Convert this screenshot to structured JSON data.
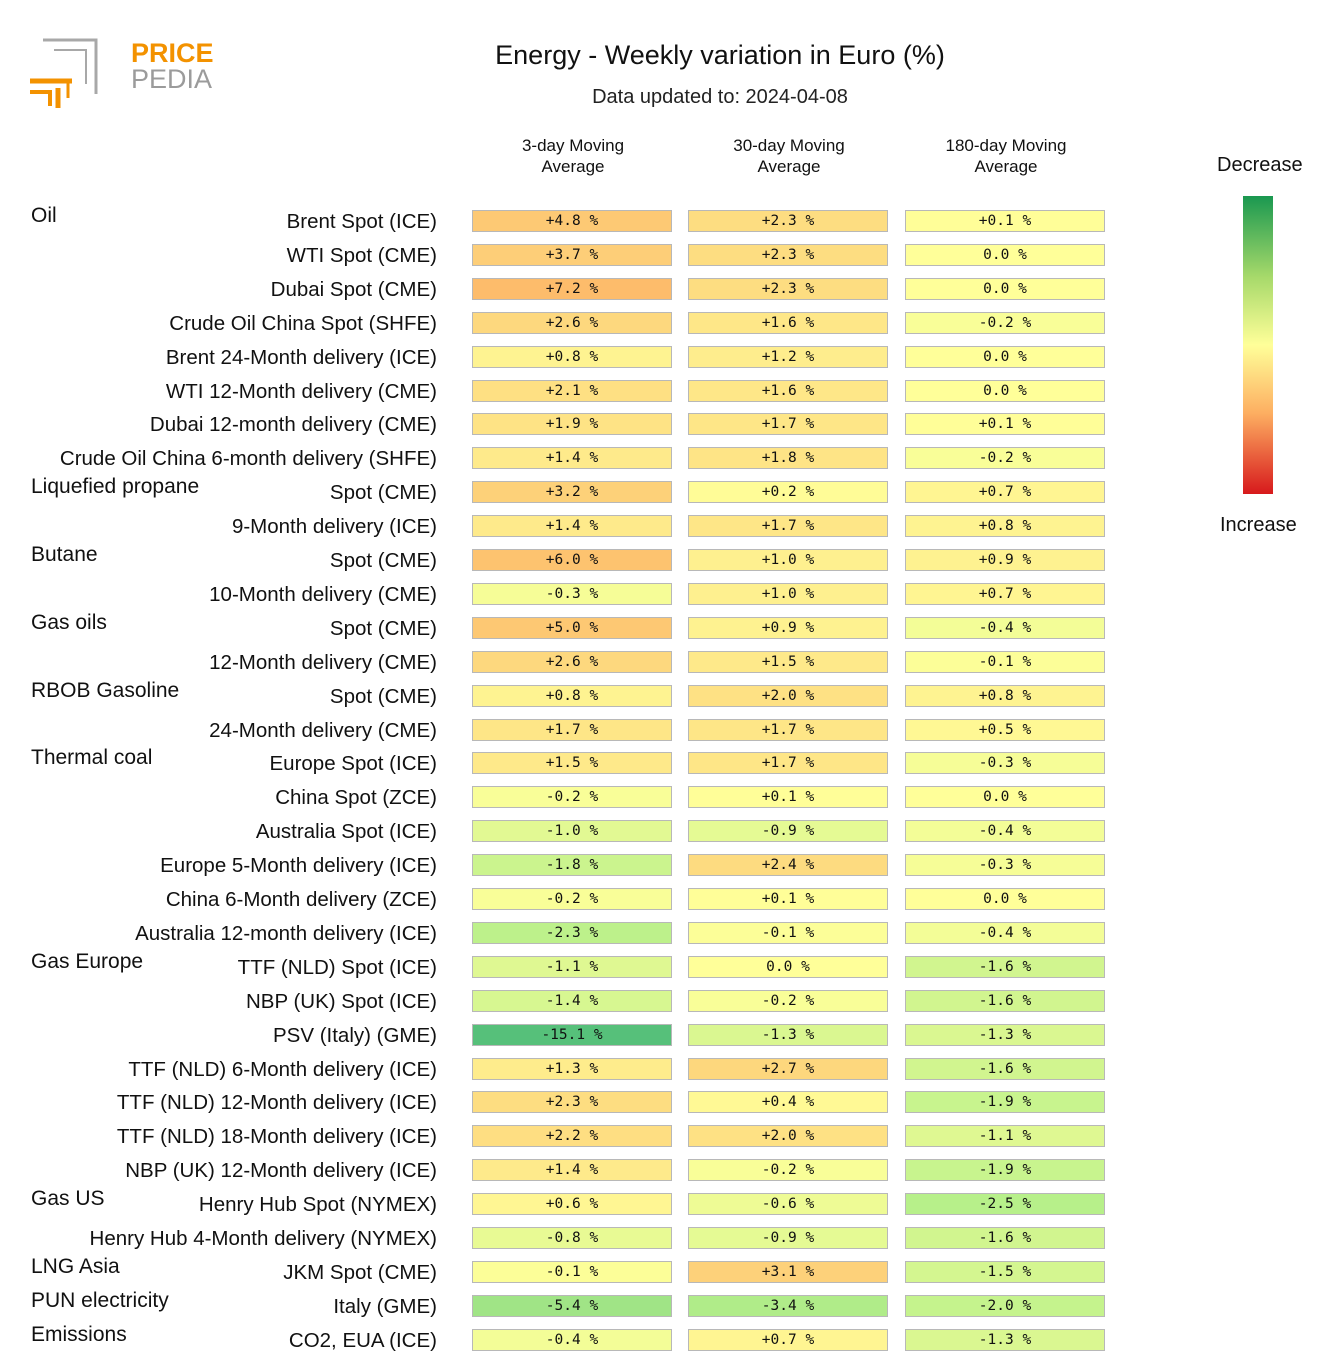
{
  "logo": {
    "line1": "PRICE",
    "line2": "PEDIA",
    "brand_color": "#f39200",
    "gray_color": "#9b9b9b"
  },
  "title": "Energy - Weekly variation in Euro (%)",
  "subtitle": "Data updated to: 2024-04-08",
  "columns": [
    {
      "line1": "3-day Moving",
      "line2": "Average"
    },
    {
      "line1": "30-day Moving",
      "line2": "Average"
    },
    {
      "line1": "180-day Moving",
      "line2": "Average"
    }
  ],
  "legend": {
    "top_label": "Decrease",
    "bottom_label": "Increase",
    "colors": [
      "#1a9850",
      "#a6d96a",
      "#ffff99",
      "#fdae61",
      "#d7191c"
    ]
  },
  "chart_data": {
    "type": "table",
    "title": "Energy - Weekly variation in Euro (%)",
    "unit": "%",
    "columns": [
      "3-day Moving Average",
      "30-day Moving Average",
      "180-day Moving Average"
    ],
    "rows": [
      {
        "group": "Oil",
        "label": "Brent Spot (ICE)",
        "values": [
          "+4.8 %",
          "+2.3 %",
          "+0.1 %"
        ]
      },
      {
        "group": "",
        "label": "WTI Spot (CME)",
        "values": [
          "+3.7 %",
          "+2.3 %",
          "0.0 %"
        ]
      },
      {
        "group": "",
        "label": "Dubai Spot (CME)",
        "values": [
          "+7.2 %",
          "+2.3 %",
          "0.0 %"
        ]
      },
      {
        "group": "",
        "label": "Crude Oil China Spot (SHFE)",
        "values": [
          "+2.6 %",
          "+1.6 %",
          "-0.2 %"
        ]
      },
      {
        "group": "",
        "label": "Brent 24-Month delivery (ICE)",
        "values": [
          "+0.8 %",
          "+1.2 %",
          "0.0 %"
        ]
      },
      {
        "group": "",
        "label": "WTI 12-Month delivery (CME)",
        "values": [
          "+2.1 %",
          "+1.6 %",
          "0.0 %"
        ]
      },
      {
        "group": "",
        "label": "Dubai 12-month delivery (CME)",
        "values": [
          "+1.9 %",
          "+1.7 %",
          "+0.1 %"
        ]
      },
      {
        "group": "",
        "label": "Crude Oil China 6-month delivery (SHFE)",
        "values": [
          "+1.4 %",
          "+1.8 %",
          "-0.2 %"
        ]
      },
      {
        "group": "Liquefied propane",
        "label": "Spot (CME)",
        "values": [
          "+3.2 %",
          "+0.2 %",
          "+0.7 %"
        ]
      },
      {
        "group": "",
        "label": "9-Month delivery (ICE)",
        "values": [
          "+1.4 %",
          "+1.7 %",
          "+0.8 %"
        ]
      },
      {
        "group": "Butane",
        "label": "Spot (CME)",
        "values": [
          "+6.0 %",
          "+1.0 %",
          "+0.9 %"
        ]
      },
      {
        "group": "",
        "label": "10-Month delivery (CME)",
        "values": [
          "-0.3 %",
          "+1.0 %",
          "+0.7 %"
        ]
      },
      {
        "group": "Gas oils",
        "label": "Spot (CME)",
        "values": [
          "+5.0 %",
          "+0.9 %",
          "-0.4 %"
        ]
      },
      {
        "group": "",
        "label": "12-Month delivery (CME)",
        "values": [
          "+2.6 %",
          "+1.5 %",
          "-0.1 %"
        ]
      },
      {
        "group": "RBOB Gasoline",
        "label": "Spot (CME)",
        "values": [
          "+0.8 %",
          "+2.0 %",
          "+0.8 %"
        ]
      },
      {
        "group": "",
        "label": "24-Month delivery (CME)",
        "values": [
          "+1.7 %",
          "+1.7 %",
          "+0.5 %"
        ]
      },
      {
        "group": "Thermal coal",
        "label": "Europe Spot (ICE)",
        "values": [
          "+1.5 %",
          "+1.7 %",
          "-0.3 %"
        ]
      },
      {
        "group": "",
        "label": "China Spot (ZCE)",
        "values": [
          "-0.2 %",
          "+0.1 %",
          "0.0 %"
        ]
      },
      {
        "group": "",
        "label": "Australia Spot (ICE)",
        "values": [
          "-1.0 %",
          "-0.9 %",
          "-0.4 %"
        ]
      },
      {
        "group": "",
        "label": "Europe 5-Month delivery (ICE)",
        "values": [
          "-1.8 %",
          "+2.4 %",
          "-0.3 %"
        ]
      },
      {
        "group": "",
        "label": "China 6-Month delivery (ZCE)",
        "values": [
          "-0.2 %",
          "+0.1 %",
          "0.0 %"
        ]
      },
      {
        "group": "",
        "label": "Australia 12-month delivery (ICE)",
        "values": [
          "-2.3 %",
          "-0.1 %",
          "-0.4 %"
        ]
      },
      {
        "group": "Gas Europe",
        "label": "TTF (NLD) Spot (ICE)",
        "values": [
          "-1.1 %",
          "0.0 %",
          "-1.6 %"
        ]
      },
      {
        "group": "",
        "label": "NBP (UK) Spot (ICE)",
        "values": [
          "-1.4 %",
          "-0.2 %",
          "-1.6 %"
        ]
      },
      {
        "group": "",
        "label": "PSV (Italy) (GME)",
        "values": [
          "-15.1 %",
          "-1.3 %",
          "-1.3 %"
        ]
      },
      {
        "group": "",
        "label": "TTF (NLD) 6-Month delivery (ICE)",
        "values": [
          "+1.3 %",
          "+2.7 %",
          "-1.6 %"
        ]
      },
      {
        "group": "",
        "label": "TTF (NLD) 12-Month delivery (ICE)",
        "values": [
          "+2.3 %",
          "+0.4 %",
          "-1.9 %"
        ]
      },
      {
        "group": "",
        "label": "TTF (NLD) 18-Month delivery (ICE)",
        "values": [
          "+2.2 %",
          "+2.0 %",
          "-1.1 %"
        ]
      },
      {
        "group": "",
        "label": "NBP (UK) 12-Month delivery (ICE)",
        "values": [
          "+1.4 %",
          "-0.2 %",
          "-1.9 %"
        ]
      },
      {
        "group": "Gas US",
        "label": "Henry Hub Spot (NYMEX)",
        "values": [
          "+0.6 %",
          "-0.6 %",
          "-2.5 %"
        ]
      },
      {
        "group": "",
        "label": "Henry Hub 4-Month delivery (NYMEX)",
        "values": [
          "-0.8 %",
          "-0.9 %",
          "-1.6 %"
        ]
      },
      {
        "group": "LNG Asia",
        "label": "JKM Spot (CME)",
        "values": [
          "-0.1 %",
          "+3.1 %",
          "-1.5 %"
        ]
      },
      {
        "group": "PUN electricity",
        "label": "Italy (GME)",
        "values": [
          "-5.4 %",
          "-3.4 %",
          "-2.0 %"
        ]
      },
      {
        "group": "Emissions",
        "label": "CO2, EUA (ICE)",
        "values": [
          "-0.4 %",
          "+0.7 %",
          "-1.3 %"
        ]
      }
    ]
  }
}
